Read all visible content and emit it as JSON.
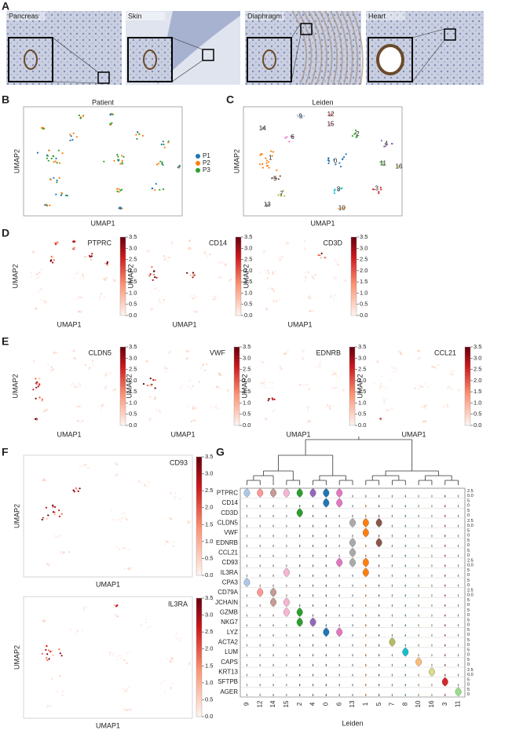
{
  "panels": {
    "A": {
      "label": "A",
      "images": [
        "Pancreas",
        "Skin",
        "Diaphragm",
        "Heart"
      ]
    },
    "B": {
      "label": "B",
      "title": "Patient",
      "legend": [
        {
          "name": "P1",
          "color": "#1f77b4"
        },
        {
          "name": "P2",
          "color": "#ff7f0e"
        },
        {
          "name": "P3",
          "color": "#2ca02c"
        }
      ]
    },
    "C": {
      "label": "C",
      "title": "Leiden",
      "clusters": [
        "0",
        "1",
        "2",
        "3",
        "4",
        "5",
        "6",
        "7",
        "8",
        "9",
        "10",
        "11",
        "12",
        "13",
        "14",
        "15",
        "16"
      ]
    },
    "D": {
      "label": "D",
      "genes": [
        "PTPRC",
        "CD14",
        "CD3D"
      ]
    },
    "E": {
      "label": "E",
      "genes": [
        "CLDN5",
        "VWF",
        "EDNRB",
        "CCL21"
      ]
    },
    "F": {
      "label": "F",
      "genes": [
        "CD93",
        "IL3RA"
      ]
    },
    "G": {
      "label": "G",
      "x_label": "Leiden",
      "genes": [
        "PTPRC",
        "CD14",
        "CD3D",
        "CLDN5",
        "VWF",
        "EDNRB",
        "CCL21",
        "CD93",
        "IL3RA",
        "CPA3",
        "CD79A",
        "JCHAIN",
        "GZMB",
        "NKG7",
        "LYZ",
        "ACTA2",
        "LUM",
        "CAPS",
        "KRT13",
        "SFTPB",
        "AGER"
      ],
      "clusters": [
        "9",
        "12",
        "14",
        "15",
        "2",
        "4",
        "0",
        "6",
        "13",
        "1",
        "5",
        "7",
        "8",
        "10",
        "16",
        "3",
        "11"
      ],
      "scales": [
        [
          "2.5",
          "0.0"
        ],
        [
          "5",
          "0"
        ],
        [
          "5",
          "0"
        ],
        [
          "2.5",
          "0.0"
        ],
        [
          "5",
          "0"
        ],
        [
          "5",
          "0"
        ],
        [
          "5",
          "0"
        ],
        [
          "2.5",
          "0.0"
        ],
        [
          "5",
          "0"
        ],
        [
          "5",
          "0"
        ],
        [
          "2.5",
          "0.0"
        ],
        [
          "5",
          "0"
        ],
        [
          "5",
          "0"
        ],
        [
          "5",
          "0"
        ],
        [
          "5",
          "0"
        ],
        [
          "5",
          "0"
        ],
        [
          "5",
          "0"
        ],
        [
          "5",
          "0"
        ],
        [
          "2.5",
          "0.0"
        ],
        [
          "5",
          "0"
        ],
        [
          "5",
          "0"
        ]
      ]
    }
  },
  "umap_axes": {
    "x": "UMAP1",
    "y": "UMAP2"
  },
  "colorbar_ticks": [
    "3.5",
    "3.0",
    "2.5",
    "2.0",
    "1.5",
    "1.0",
    "0.5",
    "0.0"
  ]
}
